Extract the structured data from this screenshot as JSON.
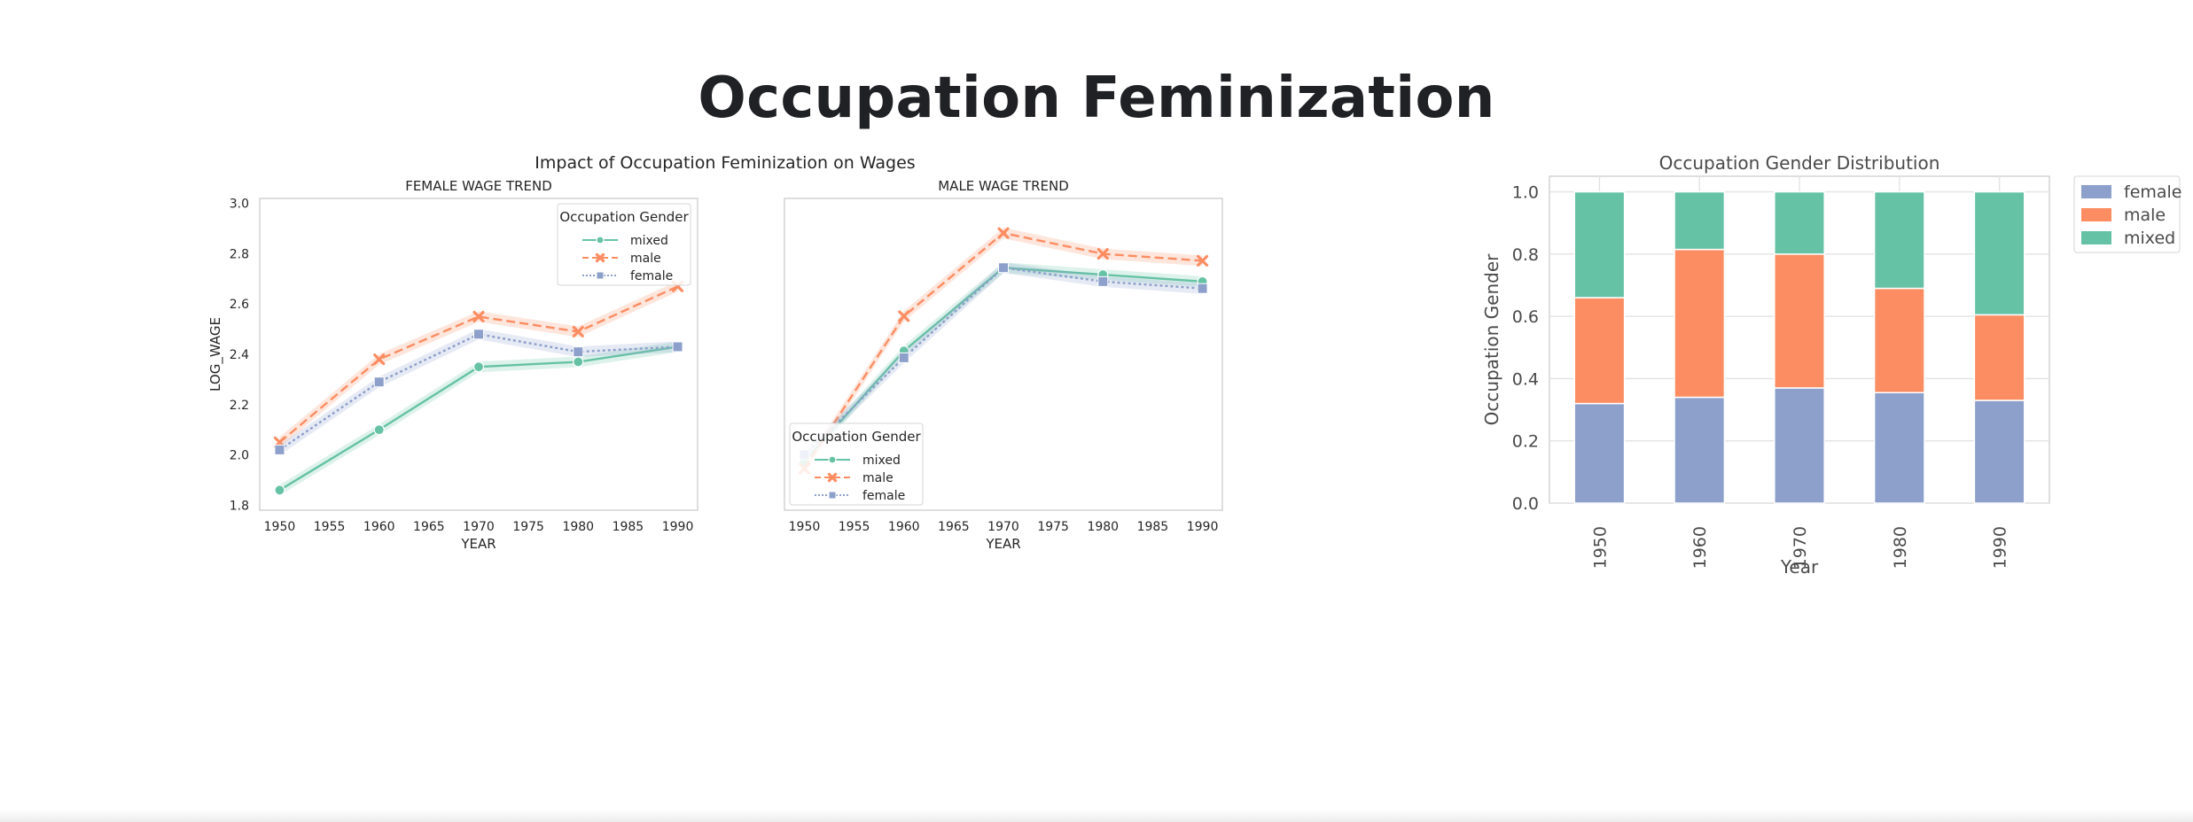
{
  "page": {
    "title": "Occupation Feminization"
  },
  "colors": {
    "mixed": "#66c2a5",
    "male": "#fc8d62",
    "female": "#8da0cb"
  },
  "chart_data": [
    {
      "type": "line",
      "suptitle": "Impact of Occupation Feminization on Wages",
      "title": "FEMALE WAGE TREND",
      "xlabel": "YEAR",
      "ylabel": "LOG_WAGE",
      "xlim": [
        1948,
        1992
      ],
      "ylim": [
        1.78,
        3.02
      ],
      "xticks": [
        "1950",
        "1955",
        "1960",
        "1965",
        "1970",
        "1975",
        "1980",
        "1985",
        "1990"
      ],
      "yticks": [
        "1.8",
        "2.0",
        "2.2",
        "2.4",
        "2.6",
        "2.8",
        "3.0"
      ],
      "x": [
        1950,
        1960,
        1970,
        1980,
        1990
      ],
      "legend": {
        "title": "Occupation Gender",
        "position": "upper right"
      },
      "series": [
        {
          "name": "mixed",
          "values": [
            1.86,
            2.1,
            2.35,
            2.37,
            2.43
          ]
        },
        {
          "name": "male",
          "values": [
            2.05,
            2.38,
            2.55,
            2.49,
            2.67
          ]
        },
        {
          "name": "female",
          "values": [
            2.02,
            2.29,
            2.48,
            2.41,
            2.43
          ]
        }
      ]
    },
    {
      "type": "line",
      "title": "MALE WAGE TREND",
      "xlabel": "YEAR",
      "xlim": [
        1948,
        1992
      ],
      "ylim": [
        2.28,
        2.73
      ],
      "xticks": [
        "1950",
        "1955",
        "1960",
        "1965",
        "1970",
        "1975",
        "1980",
        "1985",
        "1990"
      ],
      "x": [
        1950,
        1960,
        1970,
        1980,
        1990
      ],
      "legend": {
        "title": "Occupation Gender",
        "position": "lower left"
      },
      "series": [
        {
          "name": "mixed",
          "values": [
            2.35,
            2.51,
            2.63,
            2.62,
            2.61
          ]
        },
        {
          "name": "male",
          "values": [
            2.34,
            2.56,
            2.68,
            2.65,
            2.64
          ]
        },
        {
          "name": "female",
          "values": [
            2.36,
            2.5,
            2.63,
            2.61,
            2.6
          ]
        }
      ]
    },
    {
      "type": "bar",
      "stacked": true,
      "title": "Occupation Gender Distribution",
      "xlabel": "Year",
      "ylabel": "Occupation Gender",
      "ylim": [
        0,
        1.05
      ],
      "yticks": [
        "0.0",
        "0.2",
        "0.4",
        "0.6",
        "0.8",
        "1.0"
      ],
      "categories": [
        "1950",
        "1960",
        "1970",
        "1980",
        "1990"
      ],
      "legend": {
        "position": "outside upper right"
      },
      "series": [
        {
          "name": "female",
          "values": [
            0.32,
            0.34,
            0.37,
            0.355,
            0.33
          ]
        },
        {
          "name": "male",
          "values": [
            0.34,
            0.475,
            0.43,
            0.335,
            0.275
          ]
        },
        {
          "name": "mixed",
          "values": [
            0.34,
            0.185,
            0.2,
            0.31,
            0.395
          ]
        }
      ]
    }
  ]
}
